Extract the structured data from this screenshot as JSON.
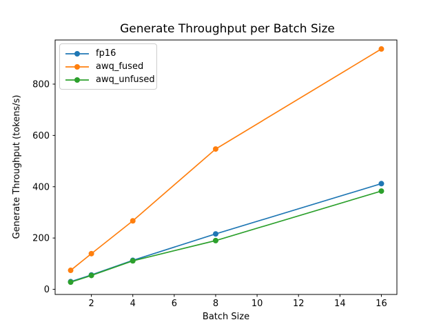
{
  "chart_data": {
    "type": "line",
    "title": "Generate Throughput per Batch Size",
    "xlabel": "Batch Size",
    "ylabel": "Generate Throughput (tokens/s)",
    "x": [
      1,
      2,
      4,
      8,
      16
    ],
    "series": [
      {
        "name": "fp16",
        "color": "#1f77b4",
        "values": [
          30,
          56,
          113,
          216,
          412
        ]
      },
      {
        "name": "awq_fused",
        "color": "#ff7f0e",
        "values": [
          74,
          139,
          267,
          547,
          937
        ]
      },
      {
        "name": "awq_unfused",
        "color": "#2ca02c",
        "values": [
          28,
          54,
          111,
          190,
          383
        ]
      }
    ],
    "xticks": [
      2,
      4,
      6,
      8,
      10,
      12,
      14,
      16
    ],
    "yticks": [
      0,
      200,
      400,
      600,
      800
    ],
    "xlim": [
      0.25,
      16.75
    ],
    "ylim": [
      -20,
      972
    ],
    "grid": false,
    "legend_position": "upper left",
    "marker": "o",
    "spine_color": "#000000",
    "background_color": "#ffffff"
  }
}
